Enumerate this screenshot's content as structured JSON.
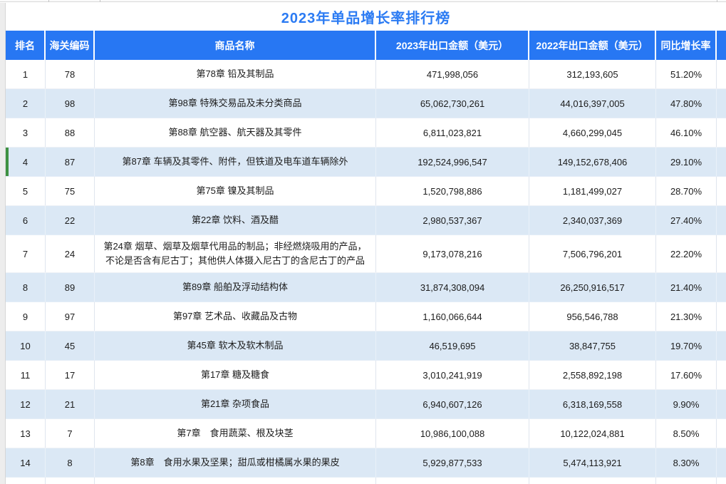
{
  "title": "2023年单品增长率排行榜",
  "colors": {
    "header_bg": "#2777f3",
    "title_text": "#2b7bf3",
    "row_alt_bg": "#dbe8f5",
    "marker_green": "#3e9142"
  },
  "table": {
    "columns": [
      "排名",
      "海关编码",
      "商品名称",
      "2023年出口金额（美元）",
      "2022年出口金额（美元）",
      "同比增长率"
    ],
    "rows": [
      {
        "rank": "1",
        "code": "78",
        "name": "第78章 铅及其制品",
        "amount_2023": "471,998,056",
        "amount_2022": "312,193,605",
        "growth": "51.20%"
      },
      {
        "rank": "2",
        "code": "98",
        "name": "第98章 特殊交易品及未分类商品",
        "amount_2023": "65,062,730,261",
        "amount_2022": "44,016,397,005",
        "growth": "47.80%"
      },
      {
        "rank": "3",
        "code": "88",
        "name": "第88章 航空器、航天器及其零件",
        "amount_2023": "6,811,023,821",
        "amount_2022": "4,660,299,045",
        "growth": "46.10%"
      },
      {
        "rank": "4",
        "code": "87",
        "name": "第87章 车辆及其零件、附件，但铁道及电车道车辆除外",
        "amount_2023": "192,524,996,547",
        "amount_2022": "149,152,678,406",
        "growth": "29.10%",
        "marked": true
      },
      {
        "rank": "5",
        "code": "75",
        "name": "第75章 镍及其制品",
        "amount_2023": "1,520,798,886",
        "amount_2022": "1,181,499,027",
        "growth": "28.70%"
      },
      {
        "rank": "6",
        "code": "22",
        "name": "第22章 饮料、酒及醋",
        "amount_2023": "2,980,537,367",
        "amount_2022": "2,340,037,369",
        "growth": "27.40%"
      },
      {
        "rank": "7",
        "code": "24",
        "name": "第24章 烟草、烟草及烟草代用品的制品；非经燃烧吸用的产品，不论是否含有尼古丁；其他供人体摄入尼古丁的含尼古丁的产品",
        "amount_2023": "9,173,078,216",
        "amount_2022": "7,506,796,201",
        "growth": "22.20%"
      },
      {
        "rank": "8",
        "code": "89",
        "name": "第89章 船舶及浮动结构体",
        "amount_2023": "31,874,308,094",
        "amount_2022": "26,250,916,517",
        "growth": "21.40%"
      },
      {
        "rank": "9",
        "code": "97",
        "name": "第97章 艺术品、收藏品及古物",
        "amount_2023": "1,160,066,644",
        "amount_2022": "956,546,788",
        "growth": "21.30%"
      },
      {
        "rank": "10",
        "code": "45",
        "name": "第45章 软木及软木制品",
        "amount_2023": "46,519,695",
        "amount_2022": "38,847,755",
        "growth": "19.70%"
      },
      {
        "rank": "11",
        "code": "17",
        "name": "第17章 糖及糖食",
        "amount_2023": "3,010,241,919",
        "amount_2022": "2,558,892,198",
        "growth": "17.60%"
      },
      {
        "rank": "12",
        "code": "21",
        "name": "第21章 杂项食品",
        "amount_2023": "6,940,607,126",
        "amount_2022": "6,318,169,558",
        "growth": "9.90%"
      },
      {
        "rank": "13",
        "code": "7",
        "name": "第7章　食用蔬菜、根及块茎",
        "amount_2023": "10,986,100,088",
        "amount_2022": "10,122,024,881",
        "growth": "8.50%"
      },
      {
        "rank": "14",
        "code": "8",
        "name": "第8章　食用水果及坚果；甜瓜或柑橘属水果的果皮",
        "amount_2023": "5,929,877,533",
        "amount_2022": "5,474,113,921",
        "growth": "8.30%"
      }
    ]
  }
}
